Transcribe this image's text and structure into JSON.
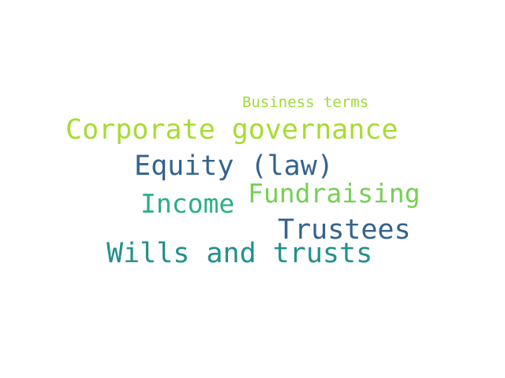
{
  "word_cloud": {
    "words": [
      {
        "text": "Business terms",
        "color": "#a0da39"
      },
      {
        "text": "Corporate governance",
        "color": "#a8db34"
      },
      {
        "text": "Equity (law)",
        "color": "#33638d"
      },
      {
        "text": "Fundraising",
        "color": "#75d054"
      },
      {
        "text": "Income",
        "color": "#2ab07f"
      },
      {
        "text": "Trustees",
        "color": "#33638d"
      },
      {
        "text": "Wills and trusts",
        "color": "#21908d"
      }
    ]
  }
}
